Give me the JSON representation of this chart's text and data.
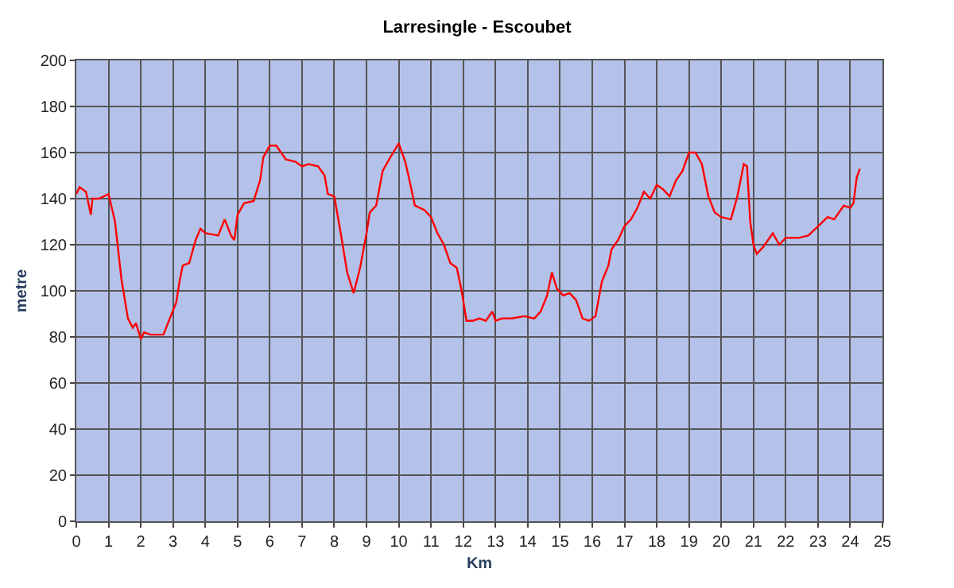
{
  "chart_data": {
    "type": "line",
    "title": "Larresingle - Escoubet",
    "xlabel": "Km",
    "ylabel": "metre",
    "x": [
      0,
      0.1,
      0.3,
      0.45,
      0.5,
      0.7,
      1.0,
      1.2,
      1.4,
      1.6,
      1.75,
      1.85,
      2.0,
      2.1,
      2.3,
      2.7,
      2.9,
      3.1,
      3.2,
      3.3,
      3.5,
      3.7,
      3.85,
      4.0,
      4.4,
      4.6,
      4.8,
      4.9,
      5.0,
      5.2,
      5.5,
      5.7,
      5.8,
      6.0,
      6.2,
      6.5,
      6.8,
      7.0,
      7.2,
      7.5,
      7.7,
      7.8,
      8.0,
      8.2,
      8.4,
      8.6,
      8.8,
      9.0,
      9.1,
      9.3,
      9.5,
      9.7,
      10.0,
      10.2,
      10.3,
      10.5,
      10.8,
      11.0,
      11.2,
      11.4,
      11.5,
      11.6,
      11.8,
      11.95,
      12.1,
      12.3,
      12.5,
      12.7,
      12.9,
      13.0,
      13.2,
      13.5,
      13.9,
      14.2,
      14.4,
      14.6,
      14.75,
      14.9,
      15.1,
      15.3,
      15.5,
      15.7,
      15.9,
      16.1,
      16.3,
      16.5,
      16.6,
      16.8,
      17.0,
      17.2,
      17.4,
      17.6,
      17.8,
      18.0,
      18.2,
      18.4,
      18.6,
      18.8,
      19.0,
      19.2,
      19.4,
      19.6,
      19.8,
      20.0,
      20.3,
      20.5,
      20.7,
      20.8,
      20.9,
      21.0,
      21.1,
      21.3,
      21.5,
      21.6,
      21.8,
      22.0,
      22.4,
      22.7,
      23.0,
      23.3,
      23.5,
      23.8,
      24.0,
      24.1,
      24.2,
      24.3
    ],
    "series": [
      {
        "color": "#ff0000",
        "values": [
          142,
          145,
          143,
          133,
          140,
          140,
          142,
          130,
          105,
          88,
          84,
          86,
          79,
          82,
          81,
          81,
          88,
          95,
          104,
          111,
          112,
          122,
          127,
          125,
          124,
          131,
          124,
          122,
          133,
          138,
          139,
          148,
          158,
          163,
          163,
          157,
          156,
          154,
          155,
          154,
          150,
          142,
          141,
          125,
          108,
          99,
          110,
          125,
          134,
          137,
          152,
          157,
          164,
          156,
          150,
          137,
          135,
          132,
          125,
          120,
          116,
          112,
          110,
          100,
          87,
          87,
          88,
          87,
          91,
          87,
          88,
          88,
          89,
          88,
          91,
          98,
          108,
          101,
          98,
          99,
          96,
          88,
          87,
          89,
          104,
          111,
          118,
          122,
          128,
          131,
          136,
          143,
          140,
          146,
          144,
          141,
          148,
          152,
          160,
          160,
          155,
          141,
          134,
          132,
          131,
          141,
          155,
          154,
          130,
          120,
          116,
          119,
          123,
          125,
          120,
          123,
          123,
          124,
          128,
          132,
          131,
          137,
          136,
          138,
          149,
          153
        ]
      }
    ],
    "xlim": [
      0,
      25
    ],
    "xticks": [
      0,
      1,
      2,
      3,
      4,
      5,
      6,
      7,
      8,
      9,
      10,
      11,
      12,
      13,
      14,
      15,
      16,
      17,
      18,
      19,
      20,
      21,
      22,
      23,
      24,
      25
    ],
    "ylim": [
      0,
      200
    ],
    "yticks": [
      0,
      20,
      40,
      60,
      80,
      100,
      120,
      140,
      160,
      180,
      200
    ],
    "grid": true,
    "marker": "none",
    "line_style": "solid"
  }
}
